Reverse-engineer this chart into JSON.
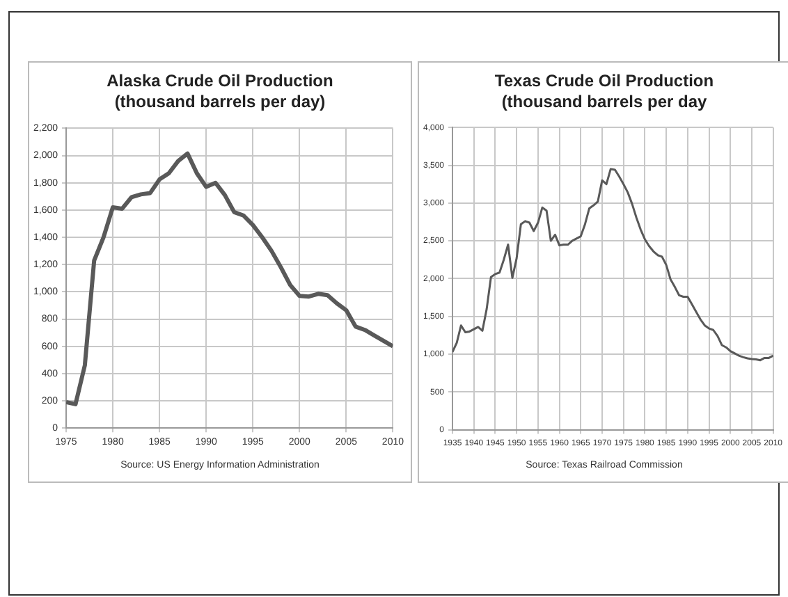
{
  "chart_data": [
    {
      "type": "line",
      "title": "Alaska Crude Oil Production\n(thousand barrels per day)",
      "x": [
        1975,
        1976,
        1977,
        1978,
        1979,
        1980,
        1981,
        1982,
        1983,
        1984,
        1985,
        1986,
        1987,
        1988,
        1989,
        1990,
        1991,
        1992,
        1993,
        1994,
        1995,
        1996,
        1997,
        1998,
        1999,
        2000,
        2001,
        2002,
        2003,
        2004,
        2005,
        2006,
        2007,
        2008,
        2009,
        2010
      ],
      "series": [
        {
          "color": "#595959",
          "values": [
            190,
            175,
            460,
            1230,
            1400,
            1620,
            1610,
            1695,
            1715,
            1725,
            1825,
            1870,
            1960,
            2015,
            1870,
            1770,
            1800,
            1710,
            1585,
            1560,
            1490,
            1400,
            1300,
            1180,
            1050,
            970,
            965,
            985,
            975,
            915,
            865,
            745,
            720,
            680,
            640,
            600
          ]
        }
      ],
      "xlim": [
        1975,
        2010
      ],
      "xticks": [
        1975,
        1980,
        1985,
        1990,
        1995,
        2000,
        2005,
        2010
      ],
      "ylim": [
        0,
        2200
      ],
      "yticks": [
        0,
        200,
        400,
        600,
        800,
        {
          "value": 1000,
          "label": "1,000"
        },
        {
          "value": 1200,
          "label": "1,200"
        },
        {
          "value": 1400,
          "label": "1,400"
        },
        {
          "value": 1600,
          "label": "1,600"
        },
        {
          "value": 1800,
          "label": "1,800"
        },
        {
          "value": 2000,
          "label": "2,000"
        },
        {
          "value": 2200,
          "label": "2,200"
        }
      ],
      "grid": true,
      "legend": false,
      "marker": "none",
      "line_style": "solid",
      "annotations": [
        "Source: US Energy Information Administration"
      ]
    },
    {
      "type": "line",
      "title": "Texas Crude Oil Production\n(thousand barrels per day",
      "x": [
        1935,
        1936,
        1937,
        1938,
        1939,
        1940,
        1941,
        1942,
        1943,
        1944,
        1945,
        1946,
        1947,
        1948,
        1949,
        1950,
        1951,
        1952,
        1953,
        1954,
        1955,
        1956,
        1957,
        1958,
        1959,
        1960,
        1961,
        1962,
        1963,
        1964,
        1965,
        1966,
        1967,
        1968,
        1969,
        1970,
        1971,
        1972,
        1973,
        1974,
        1975,
        1976,
        1977,
        1978,
        1979,
        1980,
        1981,
        1982,
        1983,
        1984,
        1985,
        1986,
        1987,
        1988,
        1989,
        1990,
        1991,
        1992,
        1993,
        1994,
        1995,
        1996,
        1997,
        1998,
        1999,
        2000,
        2001,
        2002,
        2003,
        2004,
        2005,
        2006,
        2007,
        2008,
        2009,
        2010
      ],
      "series": [
        {
          "color": "#595959",
          "values": [
            1030,
            1150,
            1380,
            1290,
            1300,
            1330,
            1360,
            1310,
            1600,
            2020,
            2060,
            2080,
            2250,
            2450,
            2010,
            2270,
            2720,
            2760,
            2740,
            2630,
            2740,
            2940,
            2900,
            2500,
            2580,
            2440,
            2450,
            2450,
            2500,
            2530,
            2560,
            2720,
            2930,
            2970,
            3020,
            3300,
            3250,
            3450,
            3440,
            3350,
            3250,
            3140,
            2990,
            2810,
            2650,
            2520,
            2430,
            2360,
            2310,
            2290,
            2180,
            1990,
            1890,
            1780,
            1760,
            1760,
            1660,
            1560,
            1460,
            1380,
            1340,
            1320,
            1240,
            1120,
            1090,
            1040,
            1010,
            980,
            960,
            945,
            935,
            930,
            920,
            950,
            950,
            980
          ]
        }
      ],
      "xlim": [
        1935,
        2010
      ],
      "xticks": [
        1935,
        1940,
        1945,
        1950,
        1955,
        1960,
        1965,
        1970,
        1975,
        1980,
        1985,
        1990,
        1995,
        2000,
        2005,
        2010
      ],
      "ylim": [
        0,
        4000
      ],
      "yticks": [
        0,
        500,
        {
          "value": 1000,
          "label": "1,000"
        },
        {
          "value": 1500,
          "label": "1,500"
        },
        {
          "value": 2000,
          "label": "2,000"
        },
        {
          "value": 2500,
          "label": "2,500"
        },
        {
          "value": 3000,
          "label": "3,000"
        },
        {
          "value": 3500,
          "label": "3,500"
        },
        {
          "value": 4000,
          "label": "4,000"
        }
      ],
      "grid": true,
      "legend": false,
      "marker": "none",
      "line_style": "solid",
      "annotations": [
        "Source: Texas Railroad Commission"
      ]
    }
  ]
}
